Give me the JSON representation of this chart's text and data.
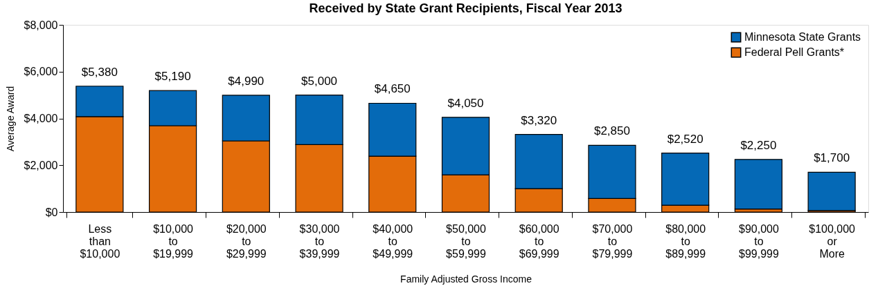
{
  "chart_data": {
    "type": "bar",
    "title": "Received by State Grant Recipients, Fiscal Year 2013",
    "xlabel": "Family Adjusted Gross Income",
    "ylabel": "Average Award",
    "categories": [
      "Less than $10,000",
      "$10,000 to $19,999",
      "$20,000 to $29,999",
      "$30,000 to $39,999",
      "$40,000 to $49,999",
      "$50,000 to $59,999",
      "$60,000 to $69,999",
      "$70,000 to $79,999",
      "$80,000 to $89,999",
      "$90,000 to $99,999",
      "$100,000 or More"
    ],
    "stacked": true,
    "series": [
      {
        "name": "Federal Pell Grants*",
        "color": "#e36c0a",
        "values": [
          4080,
          3690,
          3040,
          2880,
          2390,
          1590,
          1000,
          580,
          290,
          130,
          60
        ]
      },
      {
        "name": "Minnesota State Grants",
        "color": "#0569b6",
        "values": [
          1300,
          1500,
          1950,
          2120,
          2260,
          2460,
          2320,
          2270,
          2230,
          2120,
          1640
        ]
      }
    ],
    "totals": [
      "$5,380",
      "$5,190",
      "$4,990",
      "$5,000",
      "$4,650",
      "$4,050",
      "$3,320",
      "$2,850",
      "$2,520",
      "$2,250",
      "$1,700"
    ],
    "ylim": [
      0,
      8000
    ],
    "yticks": [
      {
        "value": 0,
        "label": "$0"
      },
      {
        "value": 2000,
        "label": "$2,000"
      },
      {
        "value": 4000,
        "label": "$4,000"
      },
      {
        "value": 6000,
        "label": "$6,000"
      },
      {
        "value": 8000,
        "label": "$8,000"
      }
    ],
    "grid": false,
    "legend": "top right"
  }
}
